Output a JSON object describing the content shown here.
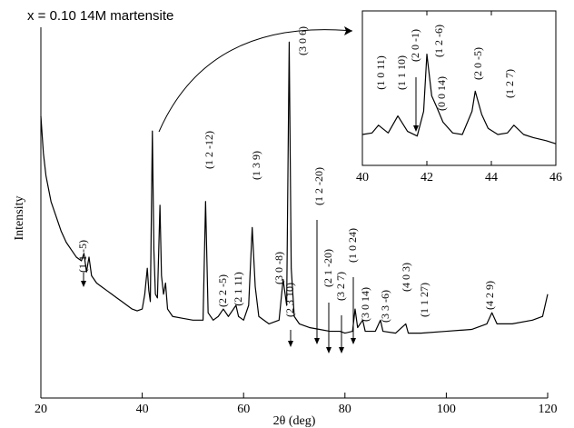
{
  "chart_data": [
    {
      "type": "line",
      "title": "x = 0.10 14M martensite",
      "xlabel": "2θ (deg)",
      "ylabel": "Intensity",
      "color": "#000000",
      "xlim": [
        20,
        120
      ],
      "ylim": [
        0,
        100
      ],
      "xticks": [
        20,
        40,
        60,
        80,
        100,
        120
      ],
      "x": [
        20,
        20.5,
        21,
        22,
        23,
        24,
        25,
        26,
        27,
        28,
        28.5,
        29,
        29.5,
        30,
        31,
        32,
        33,
        34,
        35,
        36,
        37,
        38,
        39,
        40,
        40.5,
        41,
        41.3,
        41.6,
        42,
        42.3,
        42.6,
        43,
        43.5,
        43.8,
        44.2,
        44.6,
        45,
        46,
        48,
        50,
        52,
        52.5,
        53,
        54,
        55,
        56,
        57,
        58.5,
        59,
        60,
        61,
        61.7,
        62.3,
        63,
        65,
        67,
        67.8,
        68.5,
        69,
        69.4,
        70,
        71,
        73,
        75,
        77,
        79,
        80,
        81.5,
        82,
        82.5,
        83.5,
        84,
        86,
        87,
        87.5,
        90,
        92,
        92.5,
        95,
        100,
        105,
        108,
        109,
        110,
        113,
        117,
        119,
        120
      ],
      "values": [
        76,
        66,
        60,
        53,
        49,
        45,
        42,
        40,
        38,
        37,
        39,
        34,
        38,
        33,
        31,
        30,
        29,
        28,
        27,
        26,
        25,
        24,
        23.5,
        24,
        28,
        35,
        29,
        26,
        72,
        40,
        28,
        27,
        52,
        33,
        28,
        31,
        24,
        22,
        21.5,
        21,
        21,
        53,
        23,
        21,
        22,
        24,
        22,
        25,
        22,
        21,
        25,
        46,
        30,
        22,
        20,
        21,
        32,
        25,
        96,
        35,
        22,
        20,
        19,
        18.5,
        18,
        18,
        17.5,
        18,
        24,
        19,
        21,
        18,
        18,
        21,
        18,
        17.5,
        20,
        17.5,
        17.5,
        18,
        18.5,
        20,
        23,
        20,
        20,
        21,
        22,
        28
      ],
      "annotations": [
        "(1 1 -5)",
        "(1 2 -12)",
        "(1 3 9)",
        "(3 0 6)",
        "(2 2 -5)",
        "(2 1 11)",
        "(3 0 -8)",
        "(2 3 10)",
        "(1 2 -20)",
        "(2 1 -20)",
        "(3 2 7)",
        "(1 0 24)",
        "(3 0 14)",
        "(3 3 -6)",
        "(4 0 3)",
        "(1 1 27)",
        "(4 2 9)"
      ]
    },
    {
      "type": "line",
      "color": "#000000",
      "xlim": [
        40,
        46
      ],
      "ylim": [
        0,
        100
      ],
      "xticks": [
        40,
        42,
        44,
        46
      ],
      "x": [
        40,
        40.3,
        40.5,
        40.8,
        41.1,
        41.4,
        41.7,
        41.9,
        42,
        42.15,
        42.3,
        42.5,
        42.8,
        43.1,
        43.4,
        43.5,
        43.7,
        43.9,
        44.2,
        44.5,
        44.7,
        45,
        45.3,
        45.7,
        46
      ],
      "values": [
        20,
        21,
        26,
        21,
        32,
        22,
        19,
        35,
        72,
        45,
        38,
        28,
        21,
        20,
        35,
        48,
        33,
        24,
        20,
        21,
        26,
        20,
        18,
        16,
        14
      ],
      "annotations": [
        "(1 0 11)",
        "(1 1 10)",
        "(2 0 -1)",
        "(1 2 -6)",
        "(0 0 14)",
        "(2 0 -5)",
        "(1 2 7)"
      ]
    }
  ]
}
